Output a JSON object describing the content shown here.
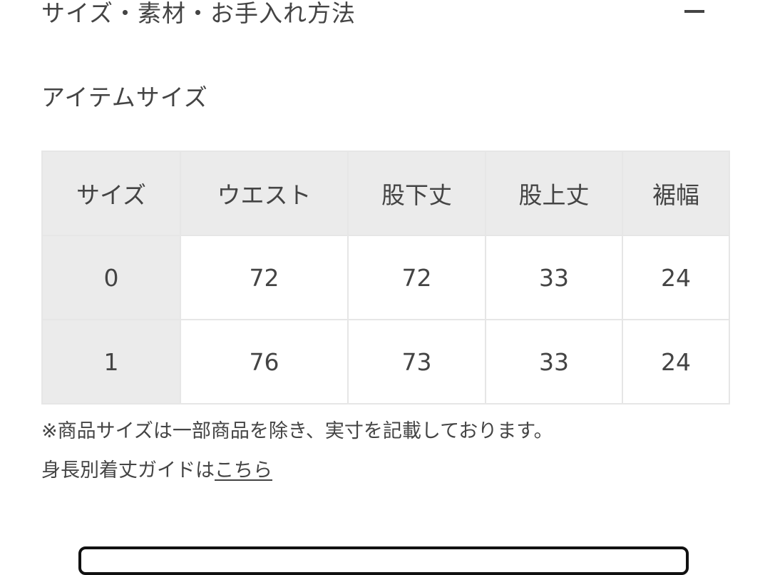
{
  "accordion": {
    "title": "サイズ・素材・お手入れ方法",
    "toggle_icon": "minus-icon"
  },
  "section_title": "アイテムサイズ",
  "table": {
    "headers": [
      "サイズ",
      "ウエスト",
      "股下丈",
      "股上丈",
      "裾幅"
    ],
    "rows": [
      [
        "0",
        "72",
        "72",
        "33",
        "24"
      ],
      [
        "1",
        "76",
        "73",
        "33",
        "24"
      ]
    ]
  },
  "note": "※商品サイズは一部商品を除き、実寸を記載しております。",
  "guide": {
    "prefix": "身長別着丈ガイドは",
    "link": "こちら"
  }
}
